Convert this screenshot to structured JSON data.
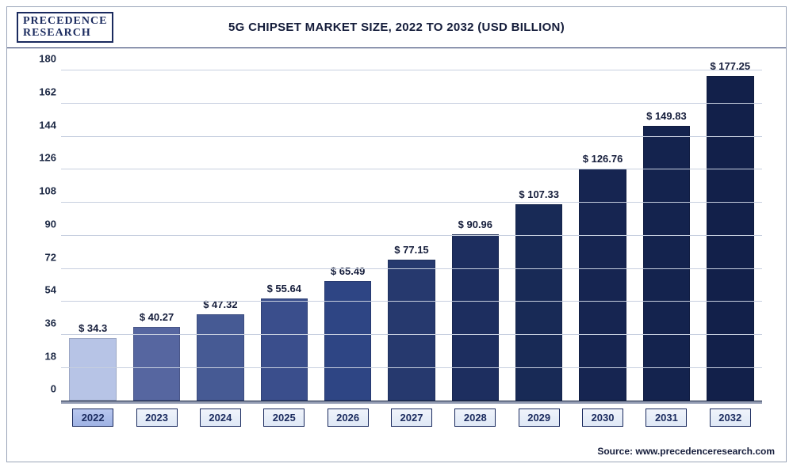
{
  "logo_line1": "PRECEDENCE",
  "logo_line2": "RESEARCH",
  "title": "5G CHIPSET MARKET SIZE, 2022 TO 2032 (USD BILLION)",
  "source": "Source: www.precedenceresearch.com",
  "chart": {
    "type": "bar",
    "ylim": [
      0,
      180
    ],
    "ytick_step": 18,
    "yticks": [
      0,
      18,
      36,
      54,
      72,
      90,
      108,
      126,
      144,
      162,
      180
    ],
    "grid_color": "#c7cfdf",
    "background_color": "#ffffff",
    "bar_width": 0.74,
    "label_prefix": "$ ",
    "title_fontsize": 15,
    "label_fontsize": 13,
    "tick_fontsize": 13,
    "categories": [
      "2022",
      "2023",
      "2024",
      "2025",
      "2026",
      "2027",
      "2028",
      "2029",
      "2030",
      "2031",
      "2032"
    ],
    "values": [
      34.3,
      40.27,
      47.32,
      55.64,
      65.49,
      77.15,
      90.96,
      107.33,
      126.76,
      149.83,
      177.25
    ],
    "value_labels": [
      "34.3",
      "40.27",
      "47.32",
      "55.64",
      "65.49",
      "77.15",
      "90.96",
      "107.33",
      "126.76",
      "149.83",
      "177.25"
    ],
    "bar_colors": [
      "#b7c4e6",
      "#5666a0",
      "#465a94",
      "#3a4e8c",
      "#2e4584",
      "#26396e",
      "#1d2e5f",
      "#182a56",
      "#162551",
      "#14234e",
      "#12204a"
    ],
    "highlight_index": 0
  }
}
